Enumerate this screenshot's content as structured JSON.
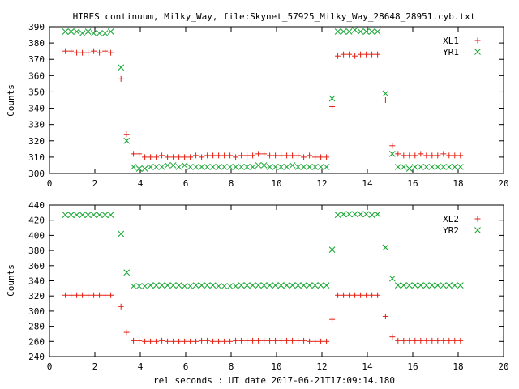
{
  "chart_data": {
    "title": "HIRES continuum, Milky_Way, file:Skynet_57925_Milky_Way_28648_28951.cyb.txt",
    "xlabel": "rel seconds : UT date 2017-06-21T17:09:14.180",
    "x_ticks": [
      "0",
      "2",
      "4",
      "6",
      "8",
      "10",
      "12",
      "14",
      "16",
      "18",
      "20"
    ],
    "panels": [
      {
        "type": "scatter",
        "ylabel": "Counts",
        "xlim": [
          0,
          20
        ],
        "ylim": [
          300,
          390
        ],
        "y_ticks": [
          "300",
          "310",
          "320",
          "330",
          "340",
          "350",
          "360",
          "370",
          "380",
          "390"
        ],
        "legend_position": "top-right",
        "series": [
          {
            "name": "XL1",
            "marker": "plus",
            "color": "#e51e10",
            "x": [
              0.7,
              0.95,
              1.2,
              1.45,
              1.7,
              1.95,
              2.2,
              2.45,
              2.7,
              3.15,
              3.4,
              3.7,
              3.95,
              4.2,
              4.45,
              4.7,
              4.95,
              5.2,
              5.45,
              5.7,
              5.95,
              6.2,
              6.45,
              6.7,
              6.95,
              7.2,
              7.45,
              7.7,
              7.95,
              8.2,
              8.45,
              8.7,
              8.95,
              9.2,
              9.45,
              9.7,
              9.95,
              10.2,
              10.45,
              10.7,
              10.95,
              11.2,
              11.45,
              11.7,
              11.95,
              12.2,
              12.45,
              12.7,
              12.95,
              13.2,
              13.45,
              13.7,
              13.95,
              14.2,
              14.45,
              14.8,
              15.1,
              15.35,
              15.6,
              15.85,
              16.1,
              16.35,
              16.6,
              16.85,
              17.1,
              17.35,
              17.6,
              17.85,
              18.1
            ],
            "y": [
              375,
              375,
              374,
              374,
              374,
              375,
              374,
              375,
              374,
              358,
              324,
              312,
              312,
              310,
              310,
              310,
              311,
              310,
              310,
              310,
              310,
              310,
              311,
              310,
              311,
              311,
              311,
              311,
              311,
              310,
              311,
              311,
              311,
              312,
              312,
              311,
              311,
              311,
              311,
              311,
              311,
              310,
              311,
              310,
              310,
              310,
              341,
              372,
              373,
              373,
              372,
              373,
              373,
              373,
              373,
              345,
              317,
              312,
              311,
              311,
              311,
              312,
              311,
              311,
              311,
              312,
              311,
              311,
              311
            ]
          },
          {
            "name": "YR1",
            "marker": "cross",
            "color": "#11a52e",
            "x": [
              0.7,
              0.95,
              1.2,
              1.45,
              1.7,
              1.95,
              2.2,
              2.45,
              2.7,
              3.15,
              3.4,
              3.7,
              3.95,
              4.2,
              4.45,
              4.7,
              4.95,
              5.2,
              5.45,
              5.7,
              5.95,
              6.2,
              6.45,
              6.7,
              6.95,
              7.2,
              7.45,
              7.7,
              7.95,
              8.2,
              8.45,
              8.7,
              8.95,
              9.2,
              9.45,
              9.7,
              9.95,
              10.2,
              10.45,
              10.7,
              10.95,
              11.2,
              11.45,
              11.7,
              11.95,
              12.2,
              12.45,
              12.7,
              12.95,
              13.2,
              13.45,
              13.7,
              13.95,
              14.2,
              14.45,
              14.8,
              15.1,
              15.35,
              15.6,
              15.85,
              16.1,
              16.35,
              16.6,
              16.85,
              17.1,
              17.35,
              17.6,
              17.85,
              18.1
            ],
            "y": [
              387,
              387,
              387,
              386,
              387,
              386,
              386,
              386,
              387,
              365,
              320,
              304,
              303,
              303,
              304,
              304,
              304,
              305,
              305,
              304,
              305,
              304,
              304,
              304,
              304,
              304,
              304,
              304,
              304,
              304,
              304,
              304,
              304,
              305,
              305,
              304,
              304,
              304,
              304,
              305,
              304,
              304,
              304,
              304,
              304,
              304,
              346,
              387,
              387,
              387,
              388,
              387,
              387,
              387,
              387,
              349,
              312,
              304,
              304,
              303,
              304,
              304,
              304,
              304,
              304,
              304,
              304,
              304,
              304
            ]
          }
        ]
      },
      {
        "type": "scatter",
        "ylabel": "Counts",
        "xlim": [
          0,
          20
        ],
        "ylim": [
          240,
          440
        ],
        "y_ticks": [
          "240",
          "260",
          "280",
          "300",
          "320",
          "340",
          "360",
          "380",
          "400",
          "420",
          "440"
        ],
        "legend_position": "top-right",
        "series": [
          {
            "name": "XL2",
            "marker": "plus",
            "color": "#e51e10",
            "x": [
              0.7,
              0.95,
              1.2,
              1.45,
              1.7,
              1.95,
              2.2,
              2.45,
              2.7,
              3.15,
              3.4,
              3.7,
              3.95,
              4.2,
              4.45,
              4.7,
              4.95,
              5.2,
              5.45,
              5.7,
              5.95,
              6.2,
              6.45,
              6.7,
              6.95,
              7.2,
              7.45,
              7.7,
              7.95,
              8.2,
              8.45,
              8.7,
              8.95,
              9.2,
              9.45,
              9.7,
              9.95,
              10.2,
              10.45,
              10.7,
              10.95,
              11.2,
              11.45,
              11.7,
              11.95,
              12.2,
              12.45,
              12.7,
              12.95,
              13.2,
              13.45,
              13.7,
              13.95,
              14.2,
              14.45,
              14.8,
              15.1,
              15.35,
              15.6,
              15.85,
              16.1,
              16.35,
              16.6,
              16.85,
              17.1,
              17.35,
              17.6,
              17.85,
              18.1
            ],
            "y": [
              321,
              321,
              321,
              321,
              321,
              321,
              321,
              321,
              321,
              306,
              272,
              261,
              261,
              260,
              260,
              260,
              261,
              260,
              260,
              260,
              260,
              260,
              260,
              261,
              261,
              260,
              260,
              260,
              260,
              261,
              261,
              261,
              261,
              261,
              261,
              261,
              261,
              261,
              261,
              261,
              261,
              261,
              260,
              260,
              260,
              260,
              289,
              321,
              321,
              321,
              321,
              321,
              321,
              321,
              321,
              293,
              266,
              261,
              261,
              261,
              261,
              261,
              261,
              261,
              261,
              261,
              261,
              261,
              261
            ]
          },
          {
            "name": "YR2",
            "marker": "cross",
            "color": "#11a52e",
            "x": [
              0.7,
              0.95,
              1.2,
              1.45,
              1.7,
              1.95,
              2.2,
              2.45,
              2.7,
              3.15,
              3.4,
              3.7,
              3.95,
              4.2,
              4.45,
              4.7,
              4.95,
              5.2,
              5.45,
              5.7,
              5.95,
              6.2,
              6.45,
              6.7,
              6.95,
              7.2,
              7.45,
              7.7,
              7.95,
              8.2,
              8.45,
              8.7,
              8.95,
              9.2,
              9.45,
              9.7,
              9.95,
              10.2,
              10.45,
              10.7,
              10.95,
              11.2,
              11.45,
              11.7,
              11.95,
              12.2,
              12.45,
              12.7,
              12.95,
              13.2,
              13.45,
              13.7,
              13.95,
              14.2,
              14.45,
              14.8,
              15.1,
              15.35,
              15.6,
              15.85,
              16.1,
              16.35,
              16.6,
              16.85,
              17.1,
              17.35,
              17.6,
              17.85,
              18.1
            ],
            "y": [
              427,
              427,
              427,
              427,
              427,
              427,
              427,
              427,
              427,
              402,
              351,
              333,
              333,
              333,
              334,
              334,
              334,
              334,
              334,
              334,
              333,
              333,
              334,
              334,
              334,
              334,
              333,
              333,
              333,
              333,
              334,
              334,
              334,
              334,
              334,
              334,
              334,
              334,
              334,
              334,
              334,
              334,
              334,
              334,
              334,
              334,
              381,
              427,
              428,
              428,
              428,
              428,
              428,
              427,
              428,
              384,
              343,
              334,
              334,
              334,
              334,
              334,
              334,
              334,
              334,
              334,
              334,
              334,
              334
            ]
          }
        ]
      }
    ]
  }
}
